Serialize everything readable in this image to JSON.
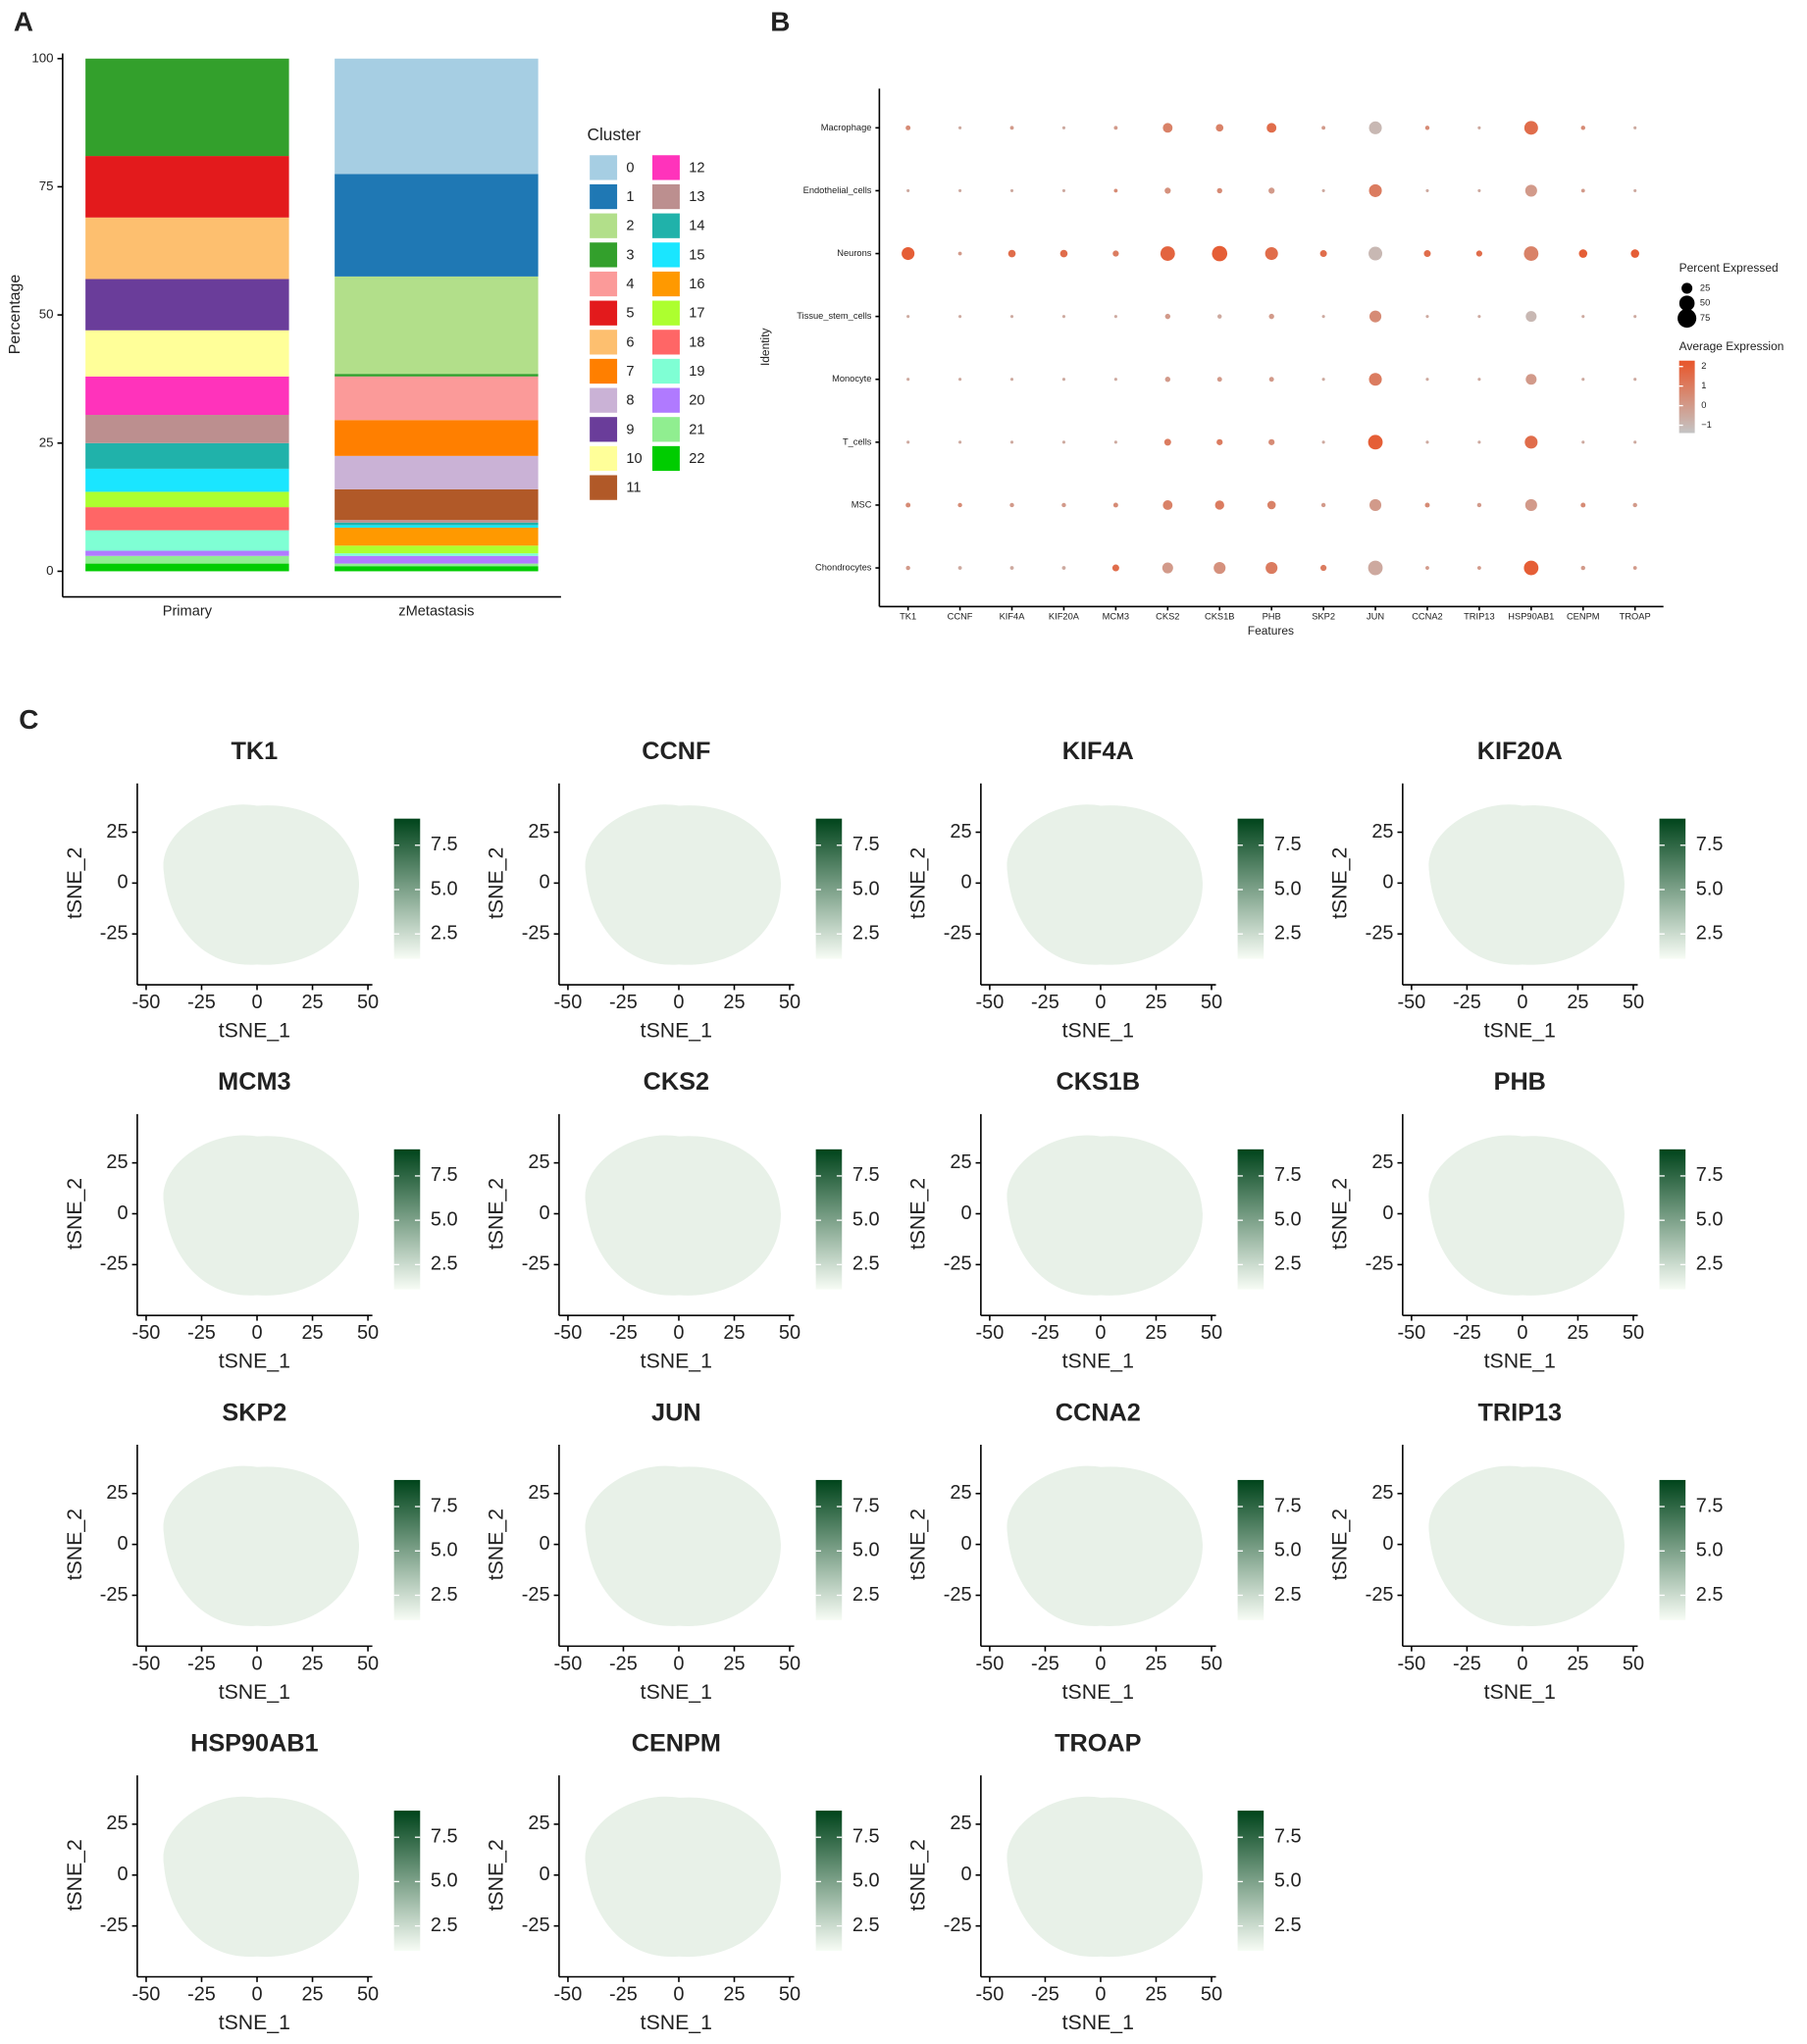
{
  "panel_labels": [
    "A",
    "B",
    "C"
  ],
  "chart_data": [
    {
      "type": "bar",
      "stacked": true,
      "ylabel": "Percentage",
      "categories": [
        "Primary",
        "zMetastasis"
      ],
      "ylim": [
        -5,
        101
      ],
      "yticks": [
        0,
        25,
        50,
        75,
        100
      ],
      "legend_title": "Cluster",
      "series": [
        {
          "name": "0",
          "color": "#a6cee3",
          "values": [
            0,
            22.5
          ]
        },
        {
          "name": "1",
          "color": "#1f78b4",
          "values": [
            0,
            20
          ]
        },
        {
          "name": "2",
          "color": "#b2df8a",
          "values": [
            0,
            19
          ]
        },
        {
          "name": "3",
          "color": "#33a02c",
          "values": [
            19,
            0.5
          ]
        },
        {
          "name": "4",
          "color": "#fb9a99",
          "values": [
            0,
            8.5
          ]
        },
        {
          "name": "5",
          "color": "#e31a1c",
          "values": [
            12,
            0
          ]
        },
        {
          "name": "6",
          "color": "#fdbf6f",
          "values": [
            12,
            0
          ]
        },
        {
          "name": "7",
          "color": "#ff7f00",
          "values": [
            0,
            7
          ]
        },
        {
          "name": "8",
          "color": "#cab2d6",
          "values": [
            0,
            6.5
          ]
        },
        {
          "name": "9",
          "color": "#6a3d9a",
          "values": [
            10,
            0
          ]
        },
        {
          "name": "10",
          "color": "#ffff99",
          "values": [
            9,
            0
          ]
        },
        {
          "name": "11",
          "color": "#b15928",
          "values": [
            0,
            6
          ]
        },
        {
          "name": "12",
          "color": "#ff33bb",
          "values": [
            7.5,
            0
          ]
        },
        {
          "name": "13",
          "color": "#bc8f8f",
          "values": [
            5.5,
            0.5
          ]
        },
        {
          "name": "14",
          "color": "#20b2aa",
          "values": [
            5,
            0.5
          ]
        },
        {
          "name": "15",
          "color": "#1ae6ff",
          "values": [
            4.5,
            0.5
          ]
        },
        {
          "name": "16",
          "color": "#ff9900",
          "values": [
            0,
            3.5
          ]
        },
        {
          "name": "17",
          "color": "#adff2f",
          "values": [
            3,
            1.5
          ]
        },
        {
          "name": "18",
          "color": "#ff6666",
          "values": [
            4.5,
            0
          ]
        },
        {
          "name": "19",
          "color": "#7fffd4",
          "values": [
            4,
            0.5
          ]
        },
        {
          "name": "20",
          "color": "#b07aff",
          "values": [
            1,
            1.5
          ]
        },
        {
          "name": "21",
          "color": "#90ee90",
          "values": [
            1.5,
            0.5
          ]
        },
        {
          "name": "22",
          "color": "#00cc00",
          "values": [
            1.5,
            1
          ]
        }
      ]
    },
    {
      "type": "dotplot",
      "xlabel": "Features",
      "ylabel": "Identity",
      "categories": [
        "TK1",
        "CCNF",
        "KIF4A",
        "KIF20A",
        "MCM3",
        "CKS2",
        "CKS1B",
        "PHB",
        "SKP2",
        "JUN",
        "CCNA2",
        "TRIP13",
        "HSP90AB1",
        "CENPM",
        "TROAP"
      ],
      "identities": [
        "Macrophage",
        "Endothelial_cells",
        "Neurons",
        "Tissue_stem_cells",
        "Monocyte",
        "T_cells",
        "MSC",
        "Chondrocytes"
      ],
      "pct": [
        [
          5,
          2,
          3,
          2,
          3,
          20,
          12,
          20,
          3,
          35,
          4,
          2,
          40,
          4,
          2
        ],
        [
          2,
          2,
          2,
          2,
          3,
          8,
          6,
          8,
          2,
          35,
          2,
          2,
          30,
          3,
          2
        ],
        [
          35,
          3,
          12,
          12,
          8,
          45,
          50,
          35,
          10,
          40,
          10,
          8,
          45,
          15,
          15
        ],
        [
          2,
          2,
          2,
          2,
          2,
          6,
          4,
          6,
          2,
          30,
          2,
          2,
          25,
          2,
          2
        ],
        [
          2,
          2,
          2,
          2,
          2,
          6,
          5,
          5,
          2,
          35,
          2,
          2,
          25,
          2,
          2
        ],
        [
          2,
          2,
          2,
          2,
          2,
          10,
          8,
          8,
          2,
          45,
          2,
          2,
          35,
          2,
          2
        ],
        [
          5,
          4,
          4,
          4,
          5,
          20,
          18,
          15,
          4,
          30,
          5,
          4,
          30,
          5,
          4
        ],
        [
          4,
          3,
          3,
          3,
          10,
          25,
          30,
          30,
          8,
          45,
          3,
          3,
          45,
          4,
          3
        ]
      ],
      "avg": [
        [
          0.5,
          -0.5,
          0,
          -0.5,
          0,
          0.8,
          0.8,
          1.5,
          0,
          -1,
          0.5,
          -0.5,
          1.5,
          0.5,
          -0.5
        ],
        [
          -0.5,
          -0.5,
          -0.5,
          -0.5,
          0.5,
          0.3,
          0.5,
          0,
          -0.5,
          1,
          -0.5,
          -0.5,
          0,
          0,
          -0.5
        ],
        [
          2,
          0,
          1.5,
          1.5,
          1,
          1.8,
          2,
          1.5,
          1.5,
          -1,
          1.5,
          1.5,
          0.8,
          2,
          2
        ],
        [
          -0.5,
          -0.5,
          -0.5,
          -0.5,
          -0.5,
          0,
          -0.5,
          0,
          -0.5,
          0.5,
          -0.5,
          -0.5,
          -1,
          -0.5,
          -0.5
        ],
        [
          -0.5,
          -0.5,
          -0.5,
          -0.5,
          -0.5,
          0,
          0,
          0,
          -0.5,
          1,
          -0.5,
          -0.5,
          0,
          -0.5,
          -0.5
        ],
        [
          -0.5,
          -0.5,
          -0.5,
          -0.5,
          -0.5,
          1,
          1,
          0.5,
          -0.5,
          2,
          -0.5,
          -0.5,
          1.5,
          -0.5,
          -0.5
        ],
        [
          0.5,
          0.5,
          0,
          0,
          0.5,
          0.8,
          1,
          0.8,
          0,
          0,
          0.5,
          0,
          0,
          0.5,
          0
        ],
        [
          0,
          -0.5,
          -0.5,
          -0.5,
          1.5,
          0,
          0.3,
          1,
          1,
          -0.5,
          0,
          0,
          2,
          0,
          0
        ]
      ],
      "size_legend_title": "Percent Expressed",
      "size_ticks": [
        25,
        50,
        75
      ],
      "color_legend_title": "Average Expression",
      "color_lim": [
        -1.4,
        2.3
      ],
      "color_ticks": [
        {
          "value": -1,
          "label": "−1"
        },
        0,
        1,
        2
      ],
      "colors": [
        "#c4c4c4",
        "#e8552a"
      ]
    },
    {
      "type": "tsne",
      "title": "TK1",
      "xlabel": "tSNE_1",
      "ylabel": "tSNE_2",
      "xlim": [
        -54,
        52
      ],
      "ylim": [
        -50,
        49
      ],
      "xticks": [
        -50,
        -25,
        0,
        25,
        50
      ],
      "yticks": [
        -25,
        0,
        25
      ],
      "colorbar_lim": [
        1.1,
        9.0
      ],
      "colorbar_ticks": [
        2.5,
        {
          "value": 5,
          "label": "5.0"
        },
        7.5
      ],
      "colors": [
        "#f7fcf5",
        "#00441b"
      ]
    },
    {
      "type": "tsne",
      "title": "CCNF",
      "xlabel": "tSNE_1",
      "ylabel": "tSNE_2",
      "xlim": [
        -54,
        52
      ],
      "ylim": [
        -50,
        49
      ],
      "xticks": [
        -50,
        -25,
        0,
        25,
        50
      ],
      "yticks": [
        -25,
        0,
        25
      ],
      "colorbar_lim": [
        1.1,
        9.0
      ],
      "colorbar_ticks": [
        2.5,
        {
          "value": 5,
          "label": "5.0"
        },
        7.5
      ],
      "colors": [
        "#f7fcf5",
        "#00441b"
      ]
    },
    {
      "type": "tsne",
      "title": "KIF4A",
      "xlabel": "tSNE_1",
      "ylabel": "tSNE_2",
      "xlim": [
        -54,
        52
      ],
      "ylim": [
        -50,
        49
      ],
      "xticks": [
        -50,
        -25,
        0,
        25,
        50
      ],
      "yticks": [
        -25,
        0,
        25
      ],
      "colorbar_lim": [
        1.1,
        9.0
      ],
      "colorbar_ticks": [
        2.5,
        {
          "value": 5,
          "label": "5.0"
        },
        7.5
      ],
      "colors": [
        "#f7fcf5",
        "#00441b"
      ]
    },
    {
      "type": "tsne",
      "title": "KIF20A",
      "xlabel": "tSNE_1",
      "ylabel": "tSNE_2",
      "xlim": [
        -54,
        52
      ],
      "ylim": [
        -50,
        49
      ],
      "xticks": [
        -50,
        -25,
        0,
        25,
        50
      ],
      "yticks": [
        -25,
        0,
        25
      ],
      "colorbar_lim": [
        1.1,
        9.0
      ],
      "colorbar_ticks": [
        2.5,
        {
          "value": 5,
          "label": "5.0"
        },
        7.5
      ],
      "colors": [
        "#f7fcf5",
        "#00441b"
      ]
    },
    {
      "type": "tsne",
      "title": "MCM3",
      "xlabel": "tSNE_1",
      "ylabel": "tSNE_2",
      "xlim": [
        -54,
        52
      ],
      "ylim": [
        -50,
        49
      ],
      "xticks": [
        -50,
        -25,
        0,
        25,
        50
      ],
      "yticks": [
        -25,
        0,
        25
      ],
      "colorbar_lim": [
        1.1,
        9.0
      ],
      "colorbar_ticks": [
        2.5,
        {
          "value": 5,
          "label": "5.0"
        },
        7.5
      ],
      "colors": [
        "#f7fcf5",
        "#00441b"
      ]
    },
    {
      "type": "tsne",
      "title": "CKS2",
      "xlabel": "tSNE_1",
      "ylabel": "tSNE_2",
      "xlim": [
        -54,
        52
      ],
      "ylim": [
        -50,
        49
      ],
      "xticks": [
        -50,
        -25,
        0,
        25,
        50
      ],
      "yticks": [
        -25,
        0,
        25
      ],
      "colorbar_lim": [
        1.1,
        9.0
      ],
      "colorbar_ticks": [
        2.5,
        {
          "value": 5,
          "label": "5.0"
        },
        7.5
      ],
      "colors": [
        "#f7fcf5",
        "#00441b"
      ]
    },
    {
      "type": "tsne",
      "title": "CKS1B",
      "xlabel": "tSNE_1",
      "ylabel": "tSNE_2",
      "xlim": [
        -54,
        52
      ],
      "ylim": [
        -50,
        49
      ],
      "xticks": [
        -50,
        -25,
        0,
        25,
        50
      ],
      "yticks": [
        -25,
        0,
        25
      ],
      "colorbar_lim": [
        1.1,
        9.0
      ],
      "colorbar_ticks": [
        2.5,
        {
          "value": 5,
          "label": "5.0"
        },
        7.5
      ],
      "colors": [
        "#f7fcf5",
        "#00441b"
      ]
    },
    {
      "type": "tsne",
      "title": "PHB",
      "xlabel": "tSNE_1",
      "ylabel": "tSNE_2",
      "xlim": [
        -54,
        52
      ],
      "ylim": [
        -50,
        49
      ],
      "xticks": [
        -50,
        -25,
        0,
        25,
        50
      ],
      "yticks": [
        -25,
        0,
        25
      ],
      "colorbar_lim": [
        1.1,
        9.0
      ],
      "colorbar_ticks": [
        2.5,
        {
          "value": 5,
          "label": "5.0"
        },
        7.5
      ],
      "colors": [
        "#f7fcf5",
        "#00441b"
      ]
    },
    {
      "type": "tsne",
      "title": "SKP2",
      "xlabel": "tSNE_1",
      "ylabel": "tSNE_2",
      "xlim": [
        -54,
        52
      ],
      "ylim": [
        -50,
        49
      ],
      "xticks": [
        -50,
        -25,
        0,
        25,
        50
      ],
      "yticks": [
        -25,
        0,
        25
      ],
      "colorbar_lim": [
        1.1,
        9.0
      ],
      "colorbar_ticks": [
        2.5,
        {
          "value": 5,
          "label": "5.0"
        },
        7.5
      ],
      "colors": [
        "#f7fcf5",
        "#00441b"
      ]
    },
    {
      "type": "tsne",
      "title": "JUN",
      "xlabel": "tSNE_1",
      "ylabel": "tSNE_2",
      "xlim": [
        -54,
        52
      ],
      "ylim": [
        -50,
        49
      ],
      "xticks": [
        -50,
        -25,
        0,
        25,
        50
      ],
      "yticks": [
        -25,
        0,
        25
      ],
      "colorbar_lim": [
        1.1,
        9.0
      ],
      "colorbar_ticks": [
        2.5,
        {
          "value": 5,
          "label": "5.0"
        },
        7.5
      ],
      "colors": [
        "#f7fcf5",
        "#00441b"
      ]
    },
    {
      "type": "tsne",
      "title": "CCNA2",
      "xlabel": "tSNE_1",
      "ylabel": "tSNE_2",
      "xlim": [
        -54,
        52
      ],
      "ylim": [
        -50,
        49
      ],
      "xticks": [
        -50,
        -25,
        0,
        25,
        50
      ],
      "yticks": [
        -25,
        0,
        25
      ],
      "colorbar_lim": [
        1.1,
        9.0
      ],
      "colorbar_ticks": [
        2.5,
        {
          "value": 5,
          "label": "5.0"
        },
        7.5
      ],
      "colors": [
        "#f7fcf5",
        "#00441b"
      ]
    },
    {
      "type": "tsne",
      "title": "TRIP13",
      "xlabel": "tSNE_1",
      "ylabel": "tSNE_2",
      "xlim": [
        -54,
        52
      ],
      "ylim": [
        -50,
        49
      ],
      "xticks": [
        -50,
        -25,
        0,
        25,
        50
      ],
      "yticks": [
        -25,
        0,
        25
      ],
      "colorbar_lim": [
        1.1,
        9.0
      ],
      "colorbar_ticks": [
        2.5,
        {
          "value": 5,
          "label": "5.0"
        },
        7.5
      ],
      "colors": [
        "#f7fcf5",
        "#00441b"
      ]
    },
    {
      "type": "tsne",
      "title": "HSP90AB1",
      "xlabel": "tSNE_1",
      "ylabel": "tSNE_2",
      "xlim": [
        -54,
        52
      ],
      "ylim": [
        -50,
        49
      ],
      "xticks": [
        -50,
        -25,
        0,
        25,
        50
      ],
      "yticks": [
        -25,
        0,
        25
      ],
      "colorbar_lim": [
        1.1,
        9.0
      ],
      "colorbar_ticks": [
        2.5,
        {
          "value": 5,
          "label": "5.0"
        },
        7.5
      ],
      "colors": [
        "#f7fcf5",
        "#00441b"
      ]
    },
    {
      "type": "tsne",
      "title": "CENPM",
      "xlabel": "tSNE_1",
      "ylabel": "tSNE_2",
      "xlim": [
        -54,
        52
      ],
      "ylim": [
        -50,
        49
      ],
      "xticks": [
        -50,
        -25,
        0,
        25,
        50
      ],
      "yticks": [
        -25,
        0,
        25
      ],
      "colorbar_lim": [
        1.1,
        9.0
      ],
      "colorbar_ticks": [
        2.5,
        {
          "value": 5,
          "label": "5.0"
        },
        7.5
      ],
      "colors": [
        "#f7fcf5",
        "#00441b"
      ]
    },
    {
      "type": "tsne",
      "title": "TROAP",
      "xlabel": "tSNE_1",
      "ylabel": "tSNE_2",
      "xlim": [
        -54,
        52
      ],
      "ylim": [
        -50,
        49
      ],
      "xticks": [
        -50,
        -25,
        0,
        25,
        50
      ],
      "yticks": [
        -25,
        0,
        25
      ],
      "colorbar_lim": [
        1.1,
        9.0
      ],
      "colorbar_ticks": [
        2.5,
        {
          "value": 5,
          "label": "5.0"
        },
        7.5
      ],
      "colors": [
        "#f7fcf5",
        "#00441b"
      ]
    }
  ]
}
